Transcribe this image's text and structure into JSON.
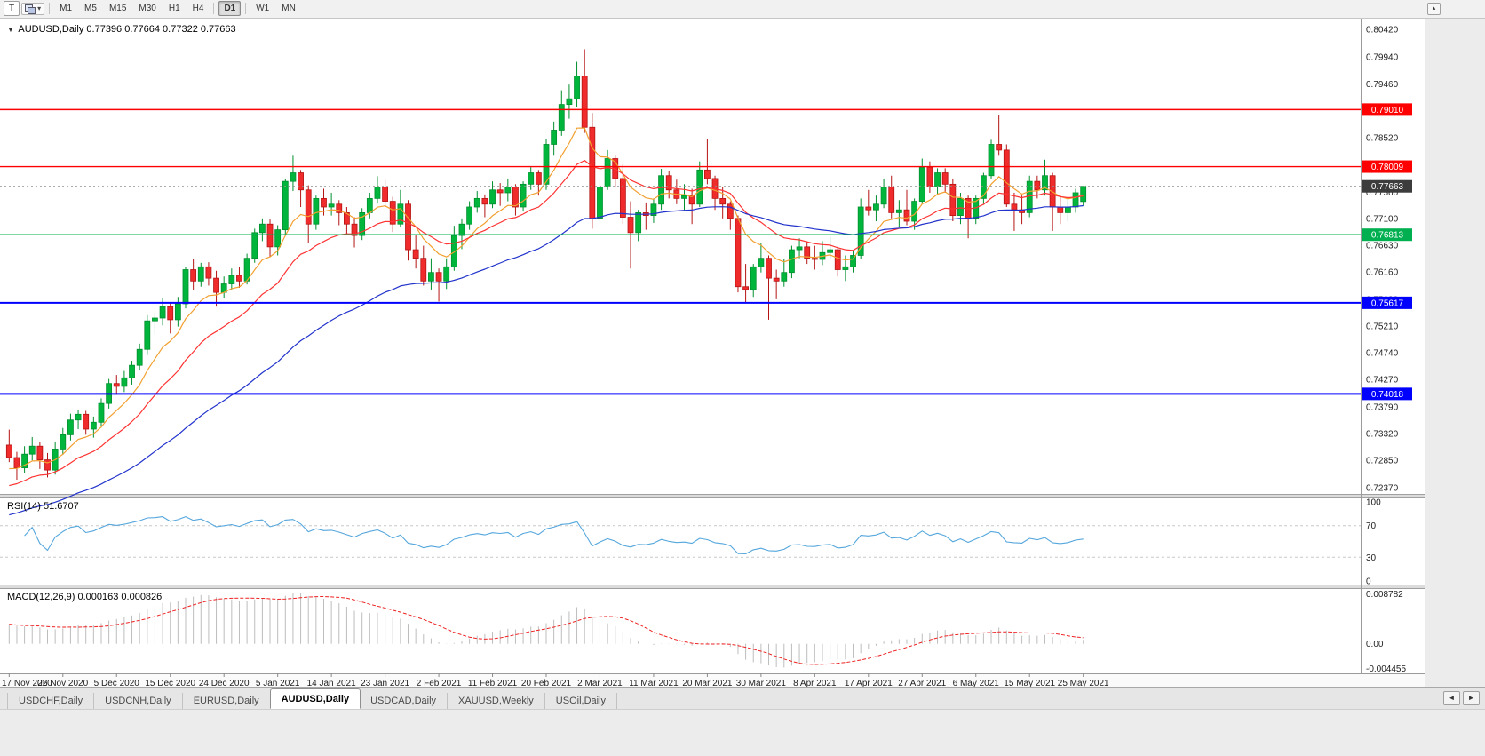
{
  "toolbar": {
    "tool_t": "T",
    "timeframes": [
      "M1",
      "M5",
      "M15",
      "M30",
      "H1",
      "H4",
      "D1",
      "W1",
      "MN"
    ],
    "active_timeframe": "D1"
  },
  "chart_header": {
    "symbol_label": "AUDUSD,Daily",
    "ohlc_text": "0.77396 0.77664 0.77322 0.77663"
  },
  "panes": {
    "rsi_label": "RSI(14) 51.6707",
    "macd_label": "MACD(12,26,9) 0.000163 0.000826"
  },
  "tabs": {
    "items": [
      "USDCHF,Daily",
      "USDCNH,Daily",
      "EURUSD,Daily",
      "AUDUSD,Daily",
      "USDCAD,Daily",
      "XAUUSD,Weekly",
      "USOil,Daily"
    ],
    "active": "AUDUSD,Daily",
    "scroll_left": "◄",
    "scroll_right": "►"
  },
  "chart_data": {
    "type": "candlestick",
    "symbol": "AUDUSD",
    "period": "Daily",
    "colors": {
      "up": "#00b53c",
      "up_border": "#008f2e",
      "down": "#ef2b2b",
      "down_border": "#b51414",
      "background": "#ffffff",
      "axis_text": "#1c1c1c"
    },
    "y_axis": {
      "min": 0.7237,
      "max": 0.8042,
      "labels": [
        "0.80420",
        "0.79940",
        "0.79460",
        "0.78990",
        "0.78520",
        "0.78040",
        "0.77560",
        "0.77100",
        "0.76630",
        "0.76160",
        "0.75680",
        "0.75210",
        "0.74740",
        "0.74270",
        "0.73790",
        "0.73320",
        "0.72850",
        "0.72370"
      ]
    },
    "x_labels": [
      "17 Nov 2020",
      "26 Nov 2020",
      "5 Dec 2020",
      "15 Dec 2020",
      "24 Dec 2020",
      "5 Jan 2021",
      "14 Jan 2021",
      "23 Jan 2021",
      "2 Feb 2021",
      "11 Feb 2021",
      "20 Feb 2021",
      "2 Mar 2021",
      "11 Mar 2021",
      "20 Mar 2021",
      "30 Mar 2021",
      "8 Apr 2021",
      "17 Apr 2021",
      "27 Apr 2021",
      "6 May 2021",
      "15 May 2021",
      "25 May 2021"
    ],
    "ohlc": [
      [
        0.7312,
        0.7339,
        0.7282,
        0.729
      ],
      [
        0.729,
        0.73,
        0.7251,
        0.7272
      ],
      [
        0.7272,
        0.731,
        0.7262,
        0.7296
      ],
      [
        0.7296,
        0.7326,
        0.7285,
        0.731
      ],
      [
        0.731,
        0.7318,
        0.727,
        0.7286
      ],
      [
        0.7286,
        0.7298,
        0.7255,
        0.7268
      ],
      [
        0.7268,
        0.7317,
        0.726,
        0.7305
      ],
      [
        0.7305,
        0.7342,
        0.7295,
        0.733
      ],
      [
        0.733,
        0.7367,
        0.732,
        0.7356
      ],
      [
        0.7356,
        0.7374,
        0.734,
        0.7366
      ],
      [
        0.7366,
        0.7372,
        0.733,
        0.734
      ],
      [
        0.734,
        0.7362,
        0.7325,
        0.7352
      ],
      [
        0.7352,
        0.7394,
        0.7344,
        0.7385
      ],
      [
        0.7385,
        0.7428,
        0.7376,
        0.742
      ],
      [
        0.742,
        0.7435,
        0.74,
        0.7415
      ],
      [
        0.7415,
        0.7442,
        0.7405,
        0.743
      ],
      [
        0.743,
        0.746,
        0.7418,
        0.7452
      ],
      [
        0.7452,
        0.749,
        0.7444,
        0.748
      ],
      [
        0.748,
        0.754,
        0.747,
        0.753
      ],
      [
        0.753,
        0.7544,
        0.7506,
        0.7535
      ],
      [
        0.7535,
        0.757,
        0.7522,
        0.7555
      ],
      [
        0.7555,
        0.7562,
        0.7508,
        0.7532
      ],
      [
        0.7532,
        0.7572,
        0.752,
        0.756
      ],
      [
        0.756,
        0.7625,
        0.7552,
        0.762
      ],
      [
        0.762,
        0.7639,
        0.7585,
        0.76
      ],
      [
        0.76,
        0.7632,
        0.759,
        0.7625
      ],
      [
        0.7625,
        0.7633,
        0.7592,
        0.7605
      ],
      [
        0.7605,
        0.7618,
        0.7555,
        0.758
      ],
      [
        0.758,
        0.7608,
        0.757,
        0.7595
      ],
      [
        0.7595,
        0.7622,
        0.7585,
        0.761
      ],
      [
        0.761,
        0.7625,
        0.7588,
        0.76
      ],
      [
        0.76,
        0.7648,
        0.7594,
        0.764
      ],
      [
        0.764,
        0.7692,
        0.7632,
        0.7685
      ],
      [
        0.7685,
        0.771,
        0.767,
        0.77
      ],
      [
        0.77,
        0.7708,
        0.7642,
        0.766
      ],
      [
        0.766,
        0.7698,
        0.7645,
        0.769
      ],
      [
        0.769,
        0.778,
        0.768,
        0.7775
      ],
      [
        0.7775,
        0.782,
        0.7758,
        0.779
      ],
      [
        0.779,
        0.7795,
        0.773,
        0.776
      ],
      [
        0.776,
        0.7768,
        0.7666,
        0.77
      ],
      [
        0.77,
        0.775,
        0.769,
        0.7745
      ],
      [
        0.7745,
        0.7762,
        0.7715,
        0.773
      ],
      [
        0.773,
        0.7755,
        0.7715,
        0.7735
      ],
      [
        0.7735,
        0.7742,
        0.7698,
        0.772
      ],
      [
        0.772,
        0.773,
        0.768,
        0.77
      ],
      [
        0.77,
        0.7712,
        0.7659,
        0.768
      ],
      [
        0.768,
        0.7728,
        0.7672,
        0.772
      ],
      [
        0.772,
        0.7755,
        0.771,
        0.7745
      ],
      [
        0.7745,
        0.7784,
        0.7736,
        0.7765
      ],
      [
        0.7765,
        0.7778,
        0.773,
        0.774
      ],
      [
        0.774,
        0.7748,
        0.7686,
        0.77
      ],
      [
        0.77,
        0.776,
        0.7695,
        0.7735
      ],
      [
        0.7735,
        0.7742,
        0.7636,
        0.7655
      ],
      [
        0.7655,
        0.768,
        0.7622,
        0.764
      ],
      [
        0.764,
        0.7662,
        0.7592,
        0.76
      ],
      [
        0.76,
        0.764,
        0.7585,
        0.7615
      ],
      [
        0.7615,
        0.7622,
        0.7564,
        0.76
      ],
      [
        0.76,
        0.764,
        0.7586,
        0.7625
      ],
      [
        0.7625,
        0.7697,
        0.7618,
        0.768
      ],
      [
        0.768,
        0.771,
        0.7656,
        0.77
      ],
      [
        0.77,
        0.774,
        0.769,
        0.773
      ],
      [
        0.773,
        0.7758,
        0.772,
        0.7745
      ],
      [
        0.7745,
        0.7752,
        0.7712,
        0.7735
      ],
      [
        0.7735,
        0.7775,
        0.7728,
        0.776
      ],
      [
        0.776,
        0.7772,
        0.7732,
        0.7755
      ],
      [
        0.7755,
        0.778,
        0.774,
        0.7765
      ],
      [
        0.7765,
        0.777,
        0.7715,
        0.773
      ],
      [
        0.773,
        0.7775,
        0.7722,
        0.777
      ],
      [
        0.777,
        0.78,
        0.776,
        0.779
      ],
      [
        0.779,
        0.7795,
        0.775,
        0.777
      ],
      [
        0.777,
        0.785,
        0.776,
        0.784
      ],
      [
        0.784,
        0.788,
        0.782,
        0.7865
      ],
      [
        0.7865,
        0.7935,
        0.7855,
        0.791
      ],
      [
        0.791,
        0.7945,
        0.7885,
        0.792
      ],
      [
        0.792,
        0.7985,
        0.7905,
        0.796
      ],
      [
        0.796,
        0.8007,
        0.786,
        0.787
      ],
      [
        0.787,
        0.7895,
        0.7692,
        0.771
      ],
      [
        0.771,
        0.778,
        0.7705,
        0.7765
      ],
      [
        0.7765,
        0.783,
        0.776,
        0.7815
      ],
      [
        0.7815,
        0.782,
        0.7765,
        0.778
      ],
      [
        0.778,
        0.7805,
        0.77,
        0.7712
      ],
      [
        0.7712,
        0.774,
        0.7622,
        0.7685
      ],
      [
        0.7685,
        0.7725,
        0.767,
        0.772
      ],
      [
        0.772,
        0.7738,
        0.769,
        0.7715
      ],
      [
        0.7715,
        0.7745,
        0.7702,
        0.7735
      ],
      [
        0.7735,
        0.7797,
        0.7725,
        0.7785
      ],
      [
        0.7785,
        0.7793,
        0.7745,
        0.776
      ],
      [
        0.776,
        0.7778,
        0.7735,
        0.7745
      ],
      [
        0.7745,
        0.777,
        0.7725,
        0.775
      ],
      [
        0.775,
        0.7762,
        0.77,
        0.7735
      ],
      [
        0.7735,
        0.781,
        0.773,
        0.7795
      ],
      [
        0.7795,
        0.785,
        0.777,
        0.778
      ],
      [
        0.778,
        0.7785,
        0.7725,
        0.7745
      ],
      [
        0.7745,
        0.7765,
        0.771,
        0.7735
      ],
      [
        0.7735,
        0.774,
        0.769,
        0.771
      ],
      [
        0.771,
        0.7715,
        0.758,
        0.759
      ],
      [
        0.759,
        0.763,
        0.7562,
        0.7585
      ],
      [
        0.7585,
        0.763,
        0.7572,
        0.7625
      ],
      [
        0.7625,
        0.7666,
        0.7615,
        0.764
      ],
      [
        0.764,
        0.7645,
        0.7532,
        0.7605
      ],
      [
        0.7605,
        0.762,
        0.7568,
        0.76
      ],
      [
        0.76,
        0.7638,
        0.759,
        0.7615
      ],
      [
        0.7615,
        0.7662,
        0.7605,
        0.7655
      ],
      [
        0.7655,
        0.7675,
        0.764,
        0.766
      ],
      [
        0.766,
        0.767,
        0.763,
        0.764
      ],
      [
        0.764,
        0.7662,
        0.762,
        0.7638
      ],
      [
        0.7638,
        0.767,
        0.7628,
        0.765
      ],
      [
        0.765,
        0.7678,
        0.764,
        0.7655
      ],
      [
        0.7655,
        0.766,
        0.7608,
        0.762
      ],
      [
        0.762,
        0.7645,
        0.76,
        0.7625
      ],
      [
        0.7625,
        0.7655,
        0.7615,
        0.7645
      ],
      [
        0.7645,
        0.7745,
        0.7638,
        0.773
      ],
      [
        0.773,
        0.776,
        0.7715,
        0.7725
      ],
      [
        0.7725,
        0.775,
        0.7705,
        0.7735
      ],
      [
        0.7735,
        0.778,
        0.7728,
        0.7765
      ],
      [
        0.7765,
        0.7785,
        0.771,
        0.772
      ],
      [
        0.772,
        0.7742,
        0.7695,
        0.7725
      ],
      [
        0.7725,
        0.776,
        0.7698,
        0.7705
      ],
      [
        0.7705,
        0.7745,
        0.769,
        0.774
      ],
      [
        0.774,
        0.7815,
        0.7735,
        0.78
      ],
      [
        0.78,
        0.781,
        0.7755,
        0.7765
      ],
      [
        0.7765,
        0.7798,
        0.7752,
        0.779
      ],
      [
        0.779,
        0.7798,
        0.7755,
        0.777
      ],
      [
        0.777,
        0.778,
        0.7705,
        0.7715
      ],
      [
        0.7715,
        0.7755,
        0.77,
        0.7745
      ],
      [
        0.7745,
        0.775,
        0.7675,
        0.771
      ],
      [
        0.771,
        0.775,
        0.77,
        0.7745
      ],
      [
        0.7745,
        0.779,
        0.7735,
        0.7785
      ],
      [
        0.7785,
        0.7848,
        0.778,
        0.784
      ],
      [
        0.784,
        0.7891,
        0.782,
        0.783
      ],
      [
        0.783,
        0.784,
        0.773,
        0.7735
      ],
      [
        0.7735,
        0.7755,
        0.7688,
        0.7725
      ],
      [
        0.7725,
        0.775,
        0.77,
        0.772
      ],
      [
        0.772,
        0.7785,
        0.7712,
        0.7775
      ],
      [
        0.7775,
        0.7785,
        0.7745,
        0.776
      ],
      [
        0.776,
        0.7813,
        0.775,
        0.7785
      ],
      [
        0.7785,
        0.779,
        0.7688,
        0.773
      ],
      [
        0.773,
        0.775,
        0.77,
        0.772
      ],
      [
        0.772,
        0.7745,
        0.7705,
        0.773
      ],
      [
        0.773,
        0.7762,
        0.772,
        0.7755
      ],
      [
        0.77396,
        0.77664,
        0.77322,
        0.77663
      ]
    ],
    "levels": [
      {
        "value": 0.7901,
        "label": "0.79010",
        "color": "#ff0000",
        "width": 1.4
      },
      {
        "value": 0.78009,
        "label": "0.78009",
        "color": "#ff0000",
        "width": 1.4
      },
      {
        "value": 0.76813,
        "label": "0.76813",
        "color": "#00b050",
        "width": 1.5
      },
      {
        "value": 0.75617,
        "label": "0.75617",
        "color": "#0000ff",
        "width": 2
      },
      {
        "value": 0.74018,
        "label": "0.74018",
        "color": "#0000ff",
        "width": 2
      }
    ],
    "current_price": {
      "value": 0.77663,
      "label": "0.77663",
      "line_color": "#909090",
      "badge_color": "#3c3c3c"
    },
    "moving_averages": [
      {
        "period": 8,
        "color": "#f2a030",
        "seed": 0.7265
      },
      {
        "period": 18,
        "color": "#ff3333",
        "seed": 0.7235
      },
      {
        "period": 48,
        "color": "#2233cc",
        "seed": 0.7185
      }
    ],
    "rsi": {
      "period": 14,
      "value": "51.6707",
      "color": "#55a7dd",
      "levels": [
        70,
        30
      ],
      "axis_labels": [
        "100",
        "70",
        "30",
        "0"
      ]
    },
    "macd": {
      "fast": 12,
      "slow": 26,
      "signal": 9,
      "value_main": "0.000163",
      "value_signal": "0.000826",
      "histogram_color": "#bdbdbd",
      "signal_color": "#ee2222",
      "axis_top": "0.008782",
      "axis_zero": "0.00",
      "axis_bottom": "-0.004455",
      "seed_fast_offset": -0.0015,
      "seed_slow_offset": -0.005
    }
  }
}
